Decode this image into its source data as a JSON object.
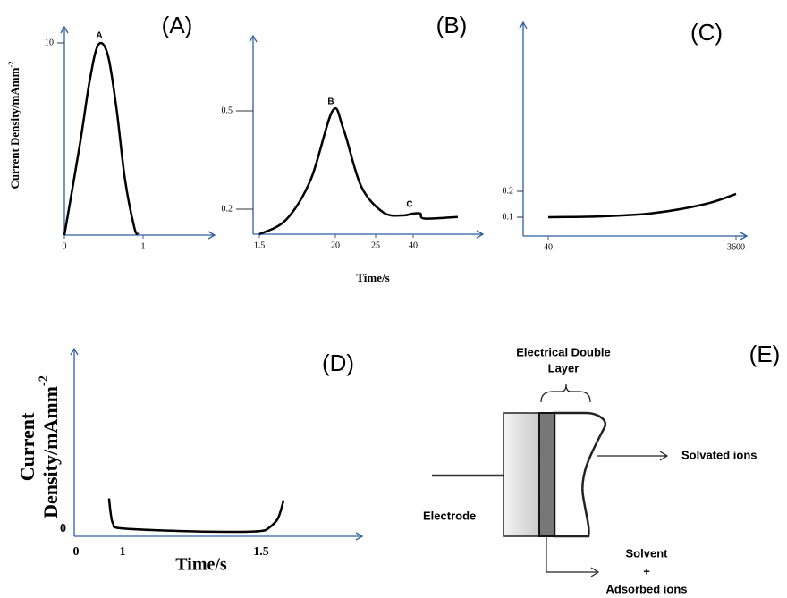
{
  "chart_data": [
    {
      "type": "line",
      "label": "(A)",
      "y_label": "Current Density/mAmm",
      "y_label_sup": "-2",
      "x": [
        0,
        0.2,
        0.32,
        0.43,
        0.55,
        0.66,
        0.77,
        0.89,
        0.94
      ],
      "values": [
        0,
        4.8,
        8.0,
        9.9,
        9.4,
        6.65,
        2.9,
        0.37,
        0.05
      ],
      "xlim": [
        0,
        1.91
      ],
      "ylim": [
        0,
        10.84
      ],
      "xticks": [
        0,
        1
      ],
      "yticks": [
        10
      ],
      "annotations": [
        "A"
      ]
    },
    {
      "type": "line",
      "label": "(B)",
      "x_label": "Time/s",
      "x": [
        1.5,
        8,
        14,
        19.3,
        21,
        23.2,
        28,
        35.7,
        40,
        42.9,
        44.6,
        57.9
      ],
      "values": [
        0.12,
        0.166,
        0.29,
        0.5,
        0.445,
        0.27,
        0.19,
        0.18,
        0.186,
        0.186,
        0.17,
        0.175
      ],
      "xlim": [
        0,
        68
      ],
      "ylim": [
        0.12,
        0.73
      ],
      "xticks": [
        1.5,
        20,
        25,
        40
      ],
      "yticks": [
        0.2,
        0.5
      ],
      "annotations": [
        "B",
        "C"
      ]
    },
    {
      "type": "line",
      "label": "(C)",
      "x": [
        40,
        1000,
        2000,
        3000,
        3600
      ],
      "values": [
        0.1,
        0.103,
        0.115,
        0.15,
        0.19
      ],
      "xlim": [
        -435,
        3803
      ],
      "ylim": [
        0.0276,
        0.852
      ],
      "xticks": [
        40,
        3600
      ],
      "yticks": [
        0.1,
        0.2
      ]
    },
    {
      "type": "line",
      "label": "(D)",
      "y_label": [
        "Current",
        "Density/mAmm"
      ],
      "y_label_sup": "-2",
      "x_label": "Time/s",
      "x": [
        0.71,
        0.75,
        0.8,
        0.96,
        1.2,
        1.4,
        1.5,
        1.53,
        1.56,
        1.58
      ],
      "values": [
        0.17,
        0.08,
        0.03,
        0.005,
        -0.01,
        -0.015,
        -0.01,
        0.01,
        0.06,
        0.16
      ],
      "xlim": [
        -0.04,
        1.86
      ],
      "ylim": [
        -0.04,
        1
      ],
      "xticks": [
        0,
        1,
        1.5
      ],
      "yticks": [
        0
      ]
    }
  ],
  "diagram": {
    "label": "(E)",
    "title": [
      "Electrical Double",
      "Layer"
    ],
    "electrode": "Electrode",
    "solvated": "Solvated ions",
    "adsorbed": [
      "Solvent",
      "+",
      "Adsorbed ions"
    ]
  }
}
